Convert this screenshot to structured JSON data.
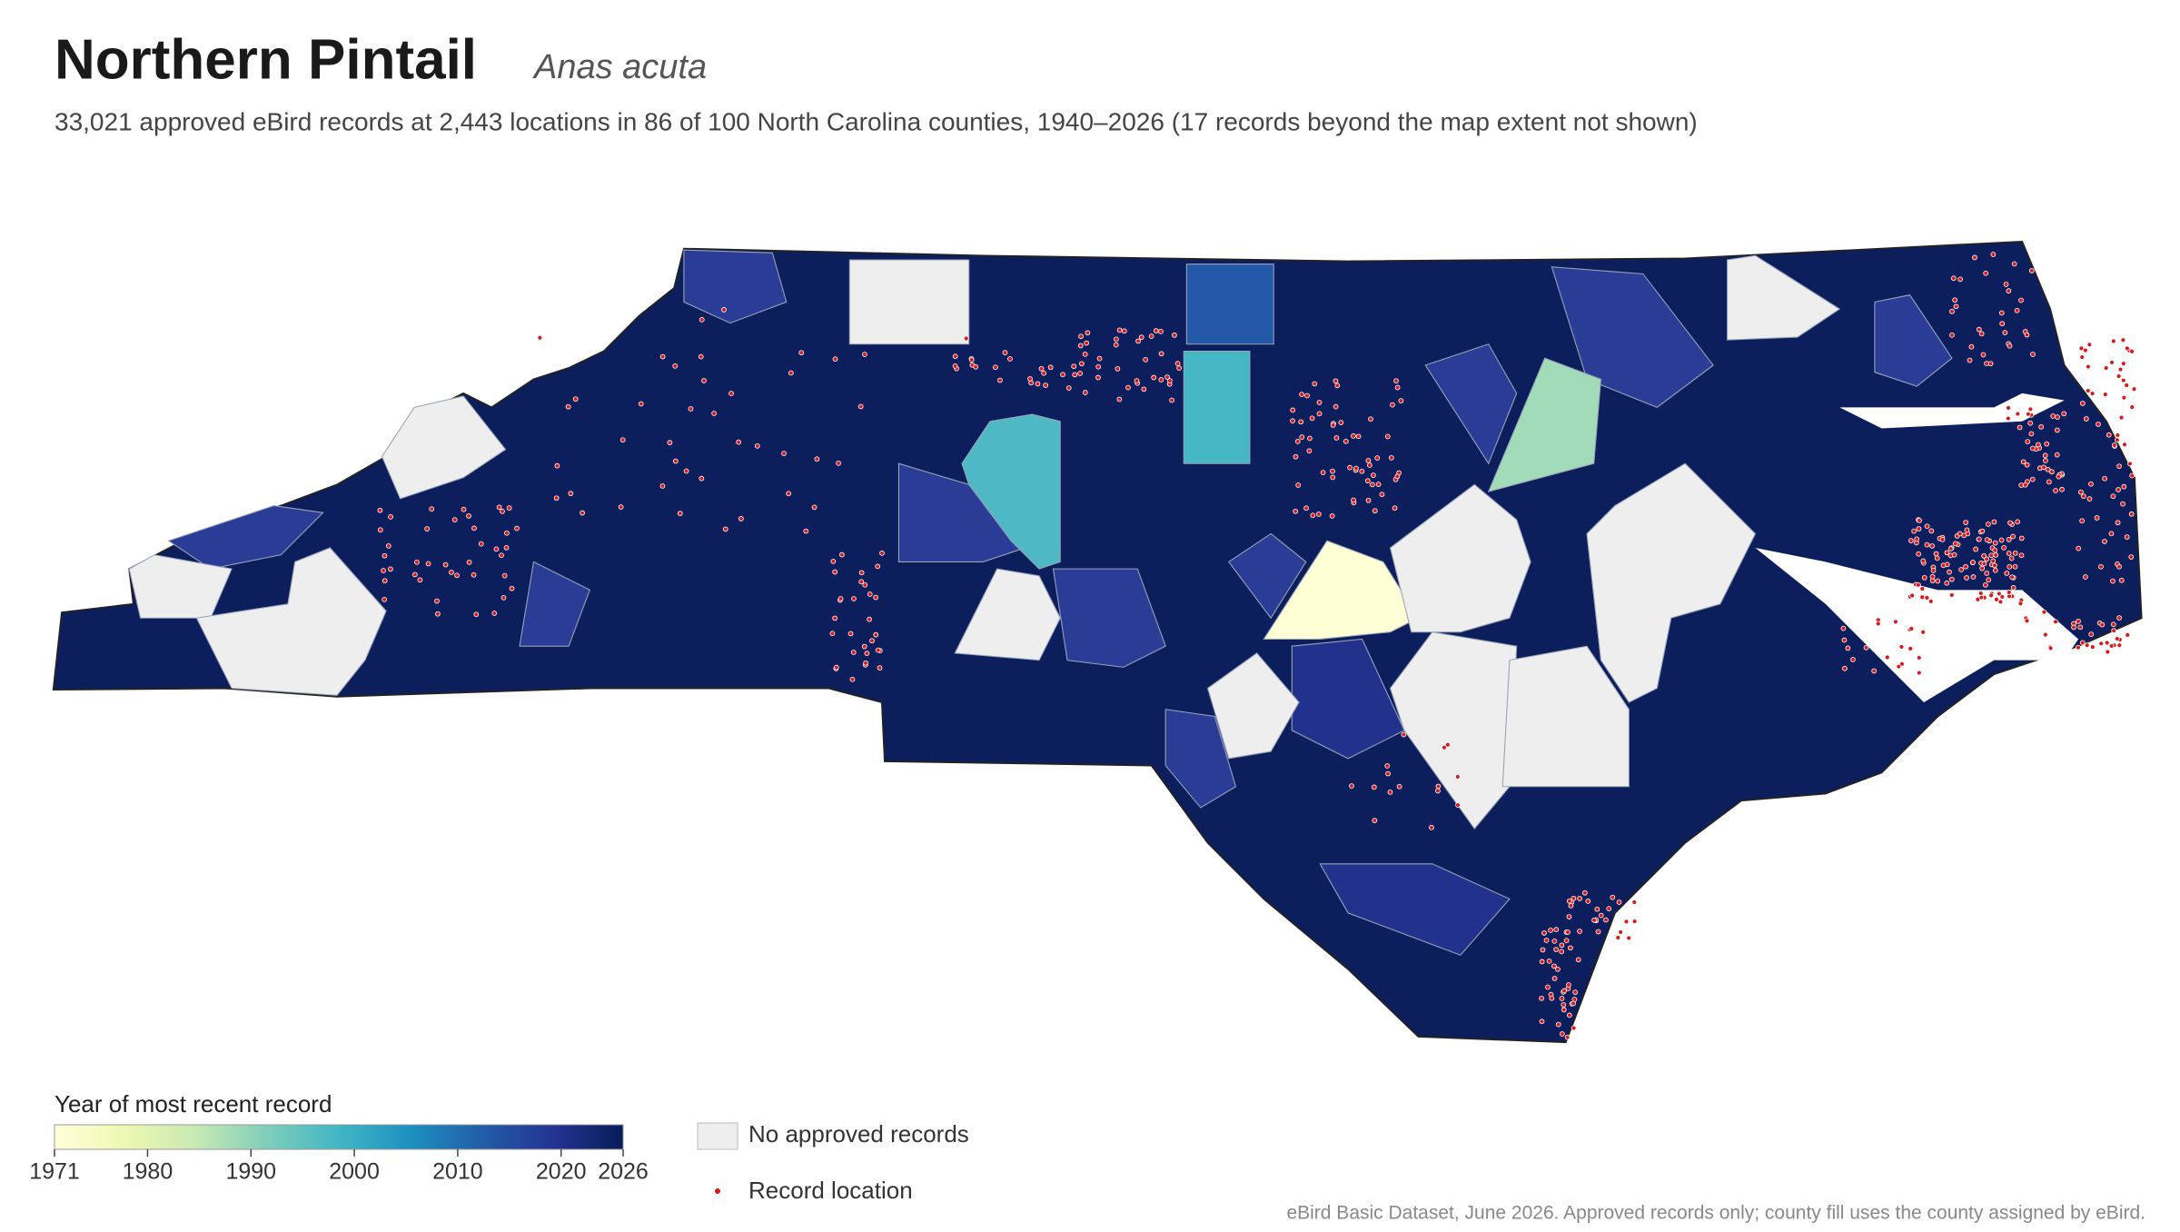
{
  "header": {
    "title": "Northern Pintail",
    "scientific_name": "Anas acuta",
    "description": "33,021 approved eBird records at 2,443 locations in 86 of 100 North Carolina counties, 1940–2026 (17 records beyond the map extent not shown)"
  },
  "legend": {
    "title": "Year of most recent record",
    "range": [
      1971,
      2026
    ],
    "ticks": [
      1971,
      1980,
      1990,
      2000,
      2010,
      2020,
      2026
    ],
    "no_records": "No approved records",
    "record_location": "Record location"
  },
  "footer": "eBird Basic Dataset, June 2026. Approved records only; county fill uses the county assigned by eBird."
}
